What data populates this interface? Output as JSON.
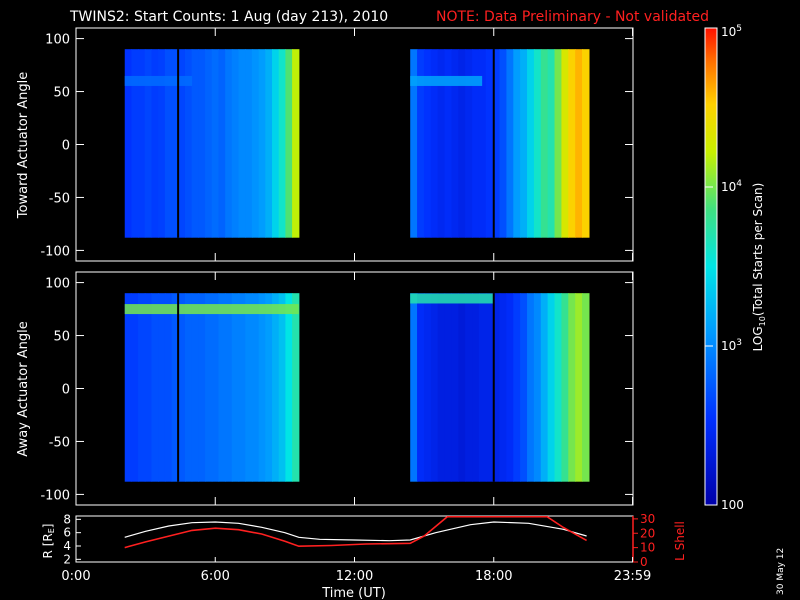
{
  "title": {
    "main": "TWINS2: Start Counts:  1 Aug (day 213), 2010",
    "note": "NOTE: Data Preliminary - Not validated",
    "note_color": "#ff2020"
  },
  "date_stamp": "30 May 12",
  "chart_data": [
    {
      "type": "heatmap",
      "id": "toward",
      "ylabel": "Toward Actuator Angle",
      "ylim": [
        -110,
        110
      ],
      "yticks": [
        100,
        50,
        0,
        -50,
        -100
      ],
      "xlim_hours": [
        0,
        24
      ],
      "blocks": [
        {
          "start_hour": 2.1,
          "end_hour": 9.6,
          "ymin": -88,
          "ymax": 90,
          "column_log_counts": [
            2.55,
            2.6,
            2.6,
            2.65,
            2.6,
            2.62,
            2.7,
            2.7,
            2.65,
            2.7,
            2.75,
            2.75,
            2.8,
            2.85,
            2.8,
            2.9,
            2.95,
            3.0,
            3.0,
            3.05,
            3.1,
            3.2,
            3.4,
            3.6,
            3.9,
            4.2
          ]
        },
        {
          "start_hour": 14.4,
          "end_hour": 22.1,
          "ymin": -88,
          "ymax": 90,
          "column_log_counts": [
            2.9,
            2.6,
            2.55,
            2.5,
            2.45,
            2.5,
            2.45,
            2.4,
            2.45,
            2.5,
            2.5,
            2.55,
            2.6,
            2.7,
            2.9,
            3.1,
            3.2,
            3.4,
            3.6,
            3.8,
            3.7,
            4.0,
            4.3,
            4.5,
            4.6,
            4.5
          ]
        }
      ],
      "bands": [
        {
          "y": 60,
          "delta": 0.3,
          "hours": [
            2.1,
            5.0
          ]
        },
        {
          "y": 60,
          "delta": 0.25,
          "hours": [
            14.4,
            17.5
          ]
        }
      ],
      "data_gaps_hours": [
        4.4,
        18.0
      ]
    },
    {
      "type": "heatmap",
      "id": "away",
      "ylabel": "Away Actuator Angle",
      "ylim": [
        -110,
        110
      ],
      "yticks": [
        100,
        50,
        0,
        -50,
        -100
      ],
      "xlim_hours": [
        0,
        24
      ],
      "blocks": [
        {
          "start_hour": 2.1,
          "end_hour": 9.6,
          "ymin": -88,
          "ymax": 90,
          "column_log_counts": [
            2.6,
            2.6,
            2.65,
            2.65,
            2.7,
            2.7,
            2.7,
            2.75,
            2.75,
            2.8,
            2.8,
            2.8,
            2.85,
            2.85,
            2.9,
            2.9,
            2.95,
            2.95,
            3.0,
            3.0,
            3.05,
            3.1,
            3.2,
            3.3,
            3.5,
            3.7
          ]
        },
        {
          "start_hour": 14.4,
          "end_hour": 22.1,
          "ymin": -88,
          "ymax": 90,
          "column_log_counts": [
            2.9,
            2.5,
            2.45,
            2.4,
            2.35,
            2.35,
            2.35,
            2.3,
            2.35,
            2.35,
            2.4,
            2.4,
            2.4,
            2.45,
            2.5,
            2.6,
            2.7,
            2.9,
            3.0,
            3.2,
            3.4,
            3.6,
            3.8,
            4.0,
            4.1,
            4.0
          ]
        }
      ],
      "bands": [
        {
          "y": 75,
          "delta": 1.4,
          "hours": [
            2.1,
            9.6
          ]
        },
        {
          "y": 85,
          "delta": 0.8,
          "hours": [
            14.4,
            18.0
          ]
        }
      ],
      "data_gaps_hours": [
        4.4,
        18.0
      ]
    },
    {
      "type": "line",
      "id": "orbit",
      "ylabel_left": "R [R_E]",
      "ylabel_right": "L Shell",
      "yticks_left": [
        2,
        4,
        6,
        8
      ],
      "yticks_right": [
        10,
        20,
        30
      ],
      "ylim_left": [
        1.6,
        8.5
      ],
      "ylim_right": [
        0,
        32
      ],
      "xlabel": "Time (UT)",
      "xticks": [
        "0:00",
        "6:00",
        "12:00",
        "18:00",
        "23:59"
      ],
      "xtick_hours": [
        0,
        6,
        12,
        18,
        23.98
      ],
      "series": [
        {
          "axis": "left",
          "color": "#ffffff",
          "x": [
            2.1,
            3.0,
            4.0,
            5.0,
            6.0,
            7.0,
            8.0,
            9.0,
            9.6,
            10.5,
            12.0,
            13.5,
            14.4,
            15.5,
            17.0,
            18.0,
            19.5,
            21.0,
            22.0
          ],
          "y": [
            5.3,
            6.2,
            7.0,
            7.5,
            7.6,
            7.4,
            6.8,
            6.0,
            5.3,
            5.0,
            4.9,
            4.8,
            4.9,
            6.0,
            7.2,
            7.6,
            7.4,
            6.5,
            5.5
          ]
        },
        {
          "axis": "right",
          "color": "#ff2020",
          "x": [
            2.1,
            3.0,
            4.0,
            5.0,
            6.0,
            7.0,
            8.0,
            9.0,
            9.6,
            11.0,
            12.5,
            14.4,
            15.0,
            16.0,
            20.3,
            21.0,
            22.0
          ],
          "y": [
            10.0,
            14.0,
            18.0,
            22.0,
            23.5,
            22.5,
            19.5,
            14.5,
            11.0,
            11.5,
            12.5,
            13.0,
            18.0,
            31.5,
            31.5,
            24.0,
            15.0
          ]
        }
      ]
    }
  ],
  "colorbar": {
    "label": "LOG10(Total Starts per Scan)",
    "label_main": "LOG",
    "label_sub": "10",
    "label_rest": "(Total Starts per Scan)",
    "ticks": [
      {
        "base": "10",
        "exp": "5",
        "value": 5
      },
      {
        "base": "10",
        "exp": "4",
        "value": 4
      },
      {
        "base": "10",
        "exp": "3",
        "value": 3
      },
      {
        "base": "100",
        "exp": "",
        "value": 2
      }
    ],
    "range": [
      2,
      5
    ]
  }
}
